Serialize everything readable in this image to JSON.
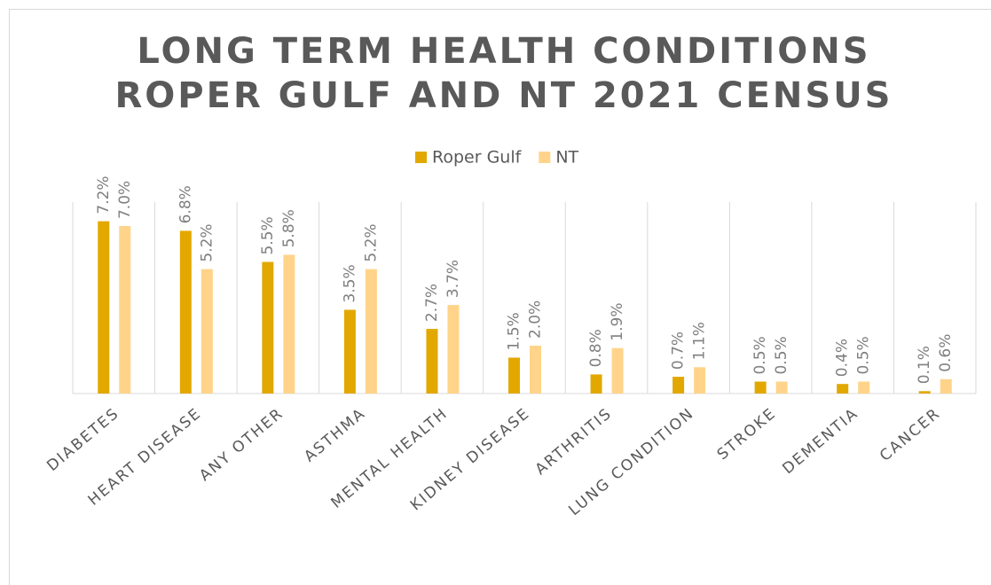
{
  "chart_data": {
    "type": "bar",
    "title": [
      "LONG TERM HEALTH CONDITIONS",
      "ROPER GULF AND NT 2021 CENSUS"
    ],
    "categories": [
      "DIABETES",
      "HEART DISEASE",
      "ANY OTHER",
      "ASTHMA",
      "MENTAL HEALTH",
      "KIDNEY DISEASE",
      "ARTHRITIS",
      "LUNG CONDITION",
      "STROKE",
      "DEMENTIA",
      "CANCER"
    ],
    "series": [
      {
        "name": "Roper Gulf",
        "color": "#e2a800",
        "values": [
          7.2,
          6.8,
          5.5,
          3.5,
          2.7,
          1.5,
          0.8,
          0.7,
          0.5,
          0.4,
          0.1
        ],
        "value_labels": [
          "7.2%",
          "6.8%",
          "5.5%",
          "3.5%",
          "2.7%",
          "1.5%",
          "0.8%",
          "0.7%",
          "0.5%",
          "0.4%",
          "0.1%"
        ]
      },
      {
        "name": "NT",
        "color": "#ffd48a",
        "values": [
          7.0,
          5.2,
          5.8,
          5.2,
          3.7,
          2.0,
          1.9,
          1.1,
          0.5,
          0.5,
          0.6
        ],
        "value_labels": [
          "7.0%",
          "5.2%",
          "5.8%",
          "5.2%",
          "3.7%",
          "2.0%",
          "1.9%",
          "1.1%",
          "0.5%",
          "0.5%",
          "0.6%"
        ]
      }
    ],
    "ylim": [
      0,
      8
    ],
    "legend": "top"
  }
}
